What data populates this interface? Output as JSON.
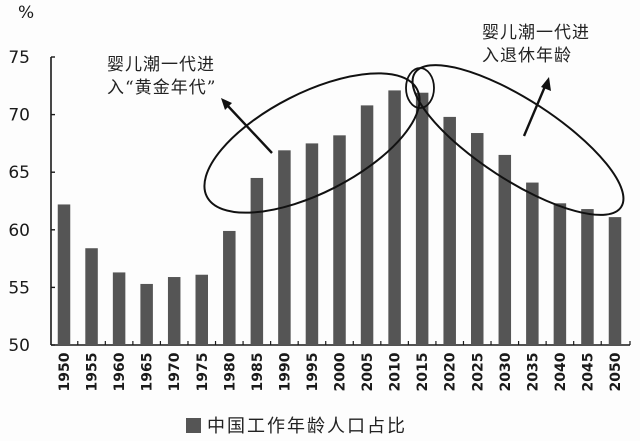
{
  "chart_data": {
    "type": "bar",
    "title": "",
    "xlabel": "",
    "ylabel": "%",
    "ylim": [
      50,
      75
    ],
    "yticks": [
      50,
      55,
      60,
      65,
      70,
      75
    ],
    "grid": false,
    "legend_position": "bottom",
    "categories": [
      "1950",
      "1955",
      "1960",
      "1965",
      "1970",
      "1975",
      "1980",
      "1985",
      "1990",
      "1995",
      "2000",
      "2005",
      "2010",
      "2015",
      "2020",
      "2025",
      "2030",
      "2035",
      "2040",
      "2045",
      "2050"
    ],
    "series": [
      {
        "name": "中国工作年龄人口占比",
        "color": "#555555",
        "values": [
          62.2,
          58.4,
          56.3,
          55.3,
          55.9,
          56.1,
          59.9,
          64.5,
          66.9,
          67.5,
          68.2,
          70.8,
          72.1,
          71.9,
          69.8,
          68.4,
          66.5,
          64.1,
          62.3,
          61.8,
          61.1
        ]
      }
    ],
    "annotations": [
      {
        "text_line1": "婴儿潮一代进",
        "text_line2": "入“黄金年代”",
        "target_range": [
          "1980",
          "2015"
        ]
      },
      {
        "text_line1": "婴儿潮一代进",
        "text_line2": "入退休年龄",
        "target_range": [
          "2015",
          "2050"
        ]
      }
    ]
  },
  "yaxis": {
    "unit_label": "%"
  },
  "legend": {
    "label": "中国工作年龄人口占比"
  },
  "annotations": {
    "golden_line1": "婴儿潮一代进",
    "golden_line2": "入“黄金年代”",
    "retire_line1": "婴儿潮一代进",
    "retire_line2": "入退休年龄"
  }
}
